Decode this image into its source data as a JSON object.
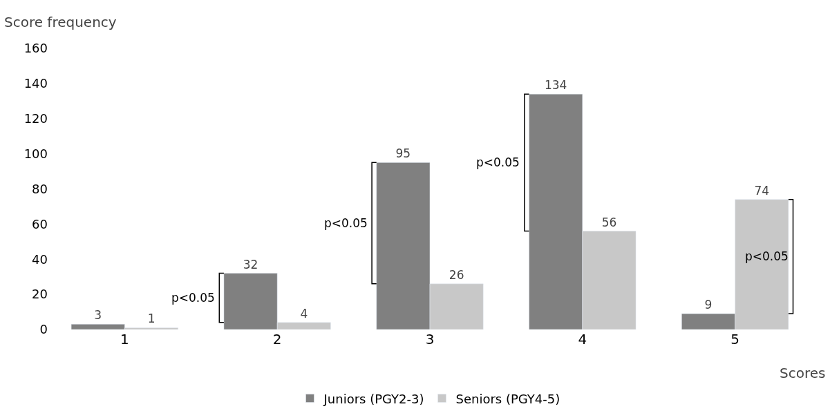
{
  "chart_data": {
    "type": "bar",
    "ylabel": "Score frequency",
    "xlabel": "Scores",
    "categories": [
      "1",
      "2",
      "3",
      "4",
      "5"
    ],
    "series": [
      {
        "name": "Juniors (PGY2-3)",
        "color": "#808080",
        "values": [
          3,
          32,
          95,
          134,
          9
        ]
      },
      {
        "name": "Seniors (PGY4-5)",
        "color": "#c8c8c8",
        "values": [
          1,
          4,
          26,
          56,
          74
        ]
      }
    ],
    "ylim": [
      0,
      160
    ],
    "yticks": [
      0,
      20,
      40,
      60,
      80,
      100,
      120,
      140,
      160
    ],
    "data_labels": true,
    "legend": "bottom",
    "annotations": [
      "p<0.05",
      "p<0.05",
      "p<0.05",
      "p<0.05"
    ]
  }
}
